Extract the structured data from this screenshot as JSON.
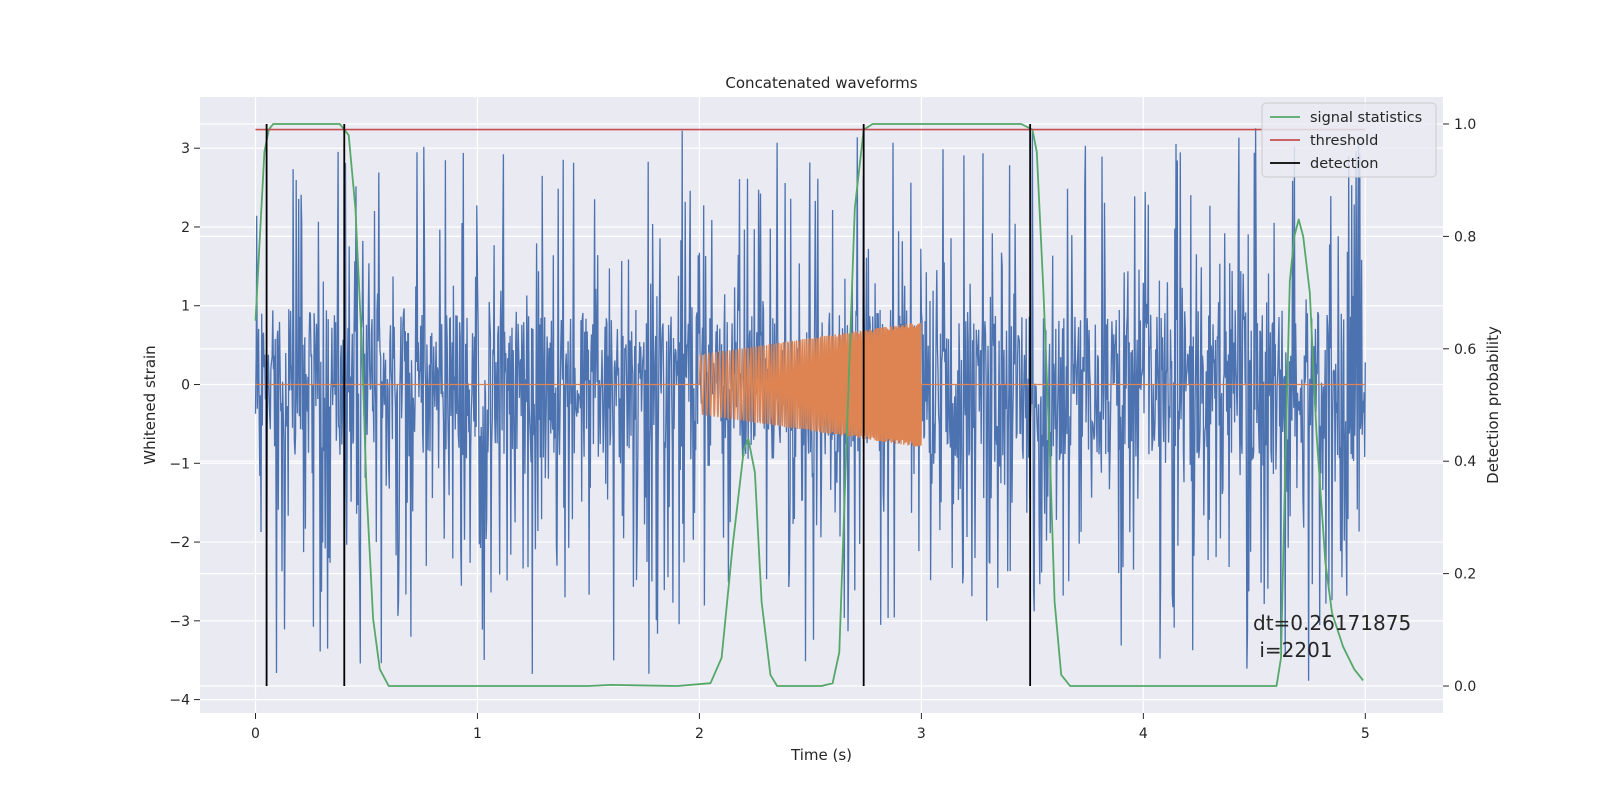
{
  "chart_data": {
    "type": "line",
    "title": "Concatenated waveforms",
    "xlabel": "Time (s)",
    "ylabel": "Whitened strain",
    "y2label": "Detection probability",
    "xlim": [
      -0.25,
      5.35
    ],
    "ylim": [
      -4.17,
      3.65
    ],
    "y2lim": [
      -0.048,
      1.048
    ],
    "xticks": [
      0,
      1,
      2,
      3,
      4,
      5
    ],
    "xtick_labels": [
      "0",
      "1",
      "2",
      "3",
      "4",
      "5"
    ],
    "yticks": [
      -4,
      -3,
      -2,
      -1,
      0,
      1,
      2,
      3
    ],
    "ytick_labels": [
      "−4",
      "−3",
      "−2",
      "−1",
      "0",
      "1",
      "2",
      "3"
    ],
    "y2ticks": [
      0.0,
      0.2,
      0.4,
      0.6,
      0.8,
      1.0
    ],
    "y2tick_labels": [
      "0.0",
      "0.2",
      "0.4",
      "0.6",
      "0.8",
      "1.0"
    ],
    "grid": true,
    "legend": {
      "placement": "top-right",
      "entries": [
        {
          "label": "signal statistics",
          "color": "#55a868"
        },
        {
          "label": "threshold",
          "color": "#c44e52"
        },
        {
          "label": "detection",
          "color": "#000000"
        }
      ]
    },
    "noise": {
      "color": "#4c72b0",
      "x_range": [
        0,
        5
      ],
      "core_range": [
        -0.95,
        0.95
      ],
      "spike_range": [
        -3.83,
        3.3
      ]
    },
    "injected_signal": {
      "color": "#dd8452",
      "baseline": 0,
      "x_range": [
        2,
        3
      ],
      "amplitude_start": 0.38,
      "amplitude_end": 0.8
    },
    "signal_statistics": {
      "color": "#55a868",
      "x": [
        0.0,
        0.02,
        0.04,
        0.06,
        0.08,
        0.1,
        0.38,
        0.42,
        0.45,
        0.48,
        0.5,
        0.53,
        0.56,
        0.6,
        1.5,
        1.6,
        1.9,
        2.05,
        2.1,
        2.15,
        2.2,
        2.22,
        2.25,
        2.28,
        2.32,
        2.35,
        2.4,
        2.55,
        2.6,
        2.63,
        2.66,
        2.7,
        2.74,
        2.78,
        3.45,
        3.5,
        3.52,
        3.55,
        3.58,
        3.6,
        3.63,
        3.67,
        4.6,
        4.62,
        4.64,
        4.66,
        4.68,
        4.7,
        4.72,
        4.75,
        4.78,
        4.82,
        4.85,
        4.9,
        4.95,
        4.99
      ],
      "y": [
        0.65,
        0.8,
        0.95,
        0.99,
        1.0,
        1.0,
        1.0,
        0.98,
        0.85,
        0.6,
        0.35,
        0.12,
        0.03,
        0.0,
        0.0,
        0.002,
        0.0,
        0.005,
        0.05,
        0.25,
        0.42,
        0.44,
        0.38,
        0.15,
        0.02,
        0.0,
        0.0,
        0.0,
        0.005,
        0.06,
        0.4,
        0.85,
        0.99,
        1.0,
        1.0,
        0.99,
        0.95,
        0.7,
        0.4,
        0.15,
        0.02,
        0.0,
        0.0,
        0.05,
        0.4,
        0.72,
        0.8,
        0.83,
        0.8,
        0.7,
        0.45,
        0.22,
        0.13,
        0.07,
        0.03,
        0.01
      ]
    },
    "threshold": {
      "color": "#c44e52",
      "value": 0.99,
      "x_range": [
        0,
        5
      ]
    },
    "detections": {
      "color": "#000000",
      "x": [
        0.05,
        0.4,
        2.74,
        3.49
      ]
    },
    "annotation": {
      "line1": "dt=0.26171875",
      "line2": " i=2201",
      "x": 4.52,
      "y": -3.3
    }
  }
}
